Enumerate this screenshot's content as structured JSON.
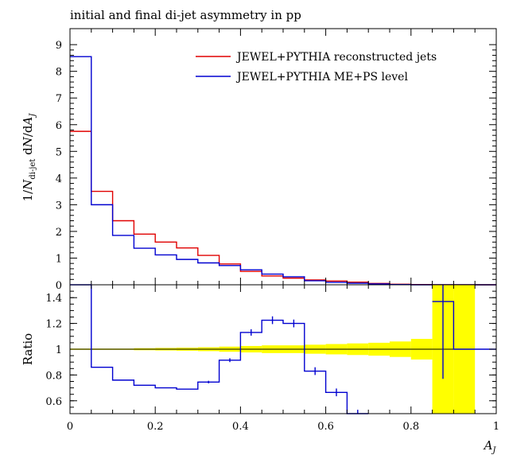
{
  "chart_data": [
    {
      "type": "line",
      "panel": "main",
      "title": "initial and final di-jet asymmetry in pp",
      "xlabel": "",
      "ylabel": "1/N_di-jet dN/dA_J",
      "xlim": [
        0,
        1
      ],
      "ylim": [
        0,
        9.6
      ],
      "yticks": [
        "0",
        "1",
        "2",
        "3",
        "4",
        "5",
        "6",
        "7",
        "8",
        "9"
      ],
      "legend_position": "top-right",
      "bin_edges": [
        0,
        0.05,
        0.1,
        0.15,
        0.2,
        0.25,
        0.3,
        0.35,
        0.4,
        0.45,
        0.5,
        0.55,
        0.6,
        0.65,
        0.7,
        0.75,
        0.8,
        0.85,
        0.9,
        0.95,
        1.0
      ],
      "series": [
        {
          "name": "JEWEL+PYTHIA reconstructed jets",
          "color": "#e00000",
          "values": [
            5.75,
            3.5,
            2.4,
            1.9,
            1.6,
            1.38,
            1.1,
            0.78,
            0.5,
            0.33,
            0.25,
            0.18,
            0.14,
            0.1,
            0.05,
            0.02,
            0.01,
            0.0,
            0.0,
            0.0
          ]
        },
        {
          "name": "JEWEL+PYTHIA ME+PS level",
          "color": "#0000d0",
          "values": [
            8.55,
            3.0,
            1.85,
            1.37,
            1.12,
            0.95,
            0.82,
            0.72,
            0.56,
            0.4,
            0.3,
            0.15,
            0.09,
            0.06,
            0.03,
            0.01,
            0.0,
            0.0,
            0.0,
            0.0
          ]
        }
      ]
    },
    {
      "type": "line",
      "panel": "ratio",
      "xlabel": "A_J",
      "ylabel": "Ratio",
      "xlim": [
        0,
        1
      ],
      "ylim": [
        0.5,
        1.5
      ],
      "xticks": [
        "0",
        "0.2",
        "0.4",
        "0.6",
        "0.8",
        "1"
      ],
      "yticks": [
        "0.6",
        "0.8",
        "1",
        "1.2",
        "1.4"
      ],
      "bin_edges": [
        0,
        0.05,
        0.1,
        0.15,
        0.2,
        0.25,
        0.3,
        0.35,
        0.4,
        0.45,
        0.5,
        0.55,
        0.6,
        0.65,
        0.7,
        0.75,
        0.8,
        0.85,
        0.9,
        0.95,
        1.0
      ],
      "band_halfwidth": [
        0.005,
        0.005,
        0.005,
        0.008,
        0.01,
        0.012,
        0.015,
        0.02,
        0.025,
        0.03,
        0.03,
        0.035,
        0.04,
        0.045,
        0.05,
        0.06,
        0.08,
        0.6,
        0.6,
        0.0
      ],
      "ratio_values": [
        1.5,
        0.86,
        0.76,
        0.72,
        0.7,
        0.69,
        0.745,
        0.915,
        1.13,
        1.225,
        1.2,
        0.83,
        0.665,
        0.5,
        null,
        null,
        null,
        1.37,
        1.0,
        1.0
      ],
      "ratio_errors": [
        0,
        0,
        0,
        0,
        0,
        0,
        0.01,
        0.015,
        0.025,
        0.03,
        0.03,
        0.03,
        0.03,
        0.03,
        null,
        null,
        null,
        0.6,
        0,
        0
      ],
      "band_color": "#ffff00",
      "line_color": "#0000d0"
    }
  ]
}
